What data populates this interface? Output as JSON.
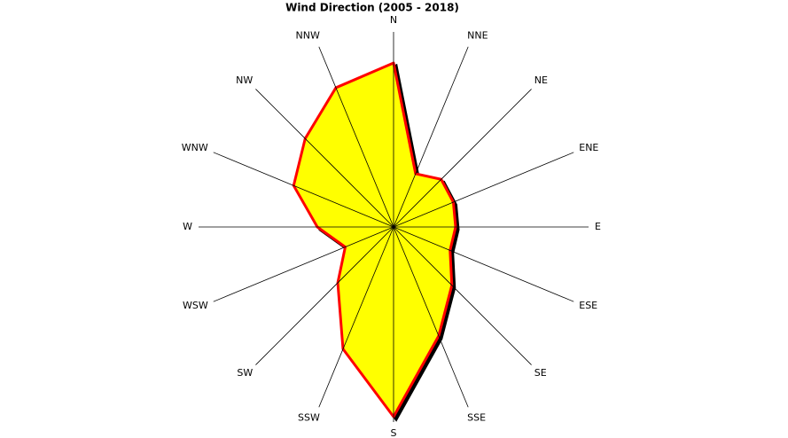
{
  "chart_data": {
    "type": "radar",
    "title": "Wind Direction (2005 - 2018)",
    "categories": [
      "N",
      "NNE",
      "NE",
      "ENE",
      "E",
      "ESE",
      "SE",
      "SSE",
      "S",
      "SSW",
      "SW",
      "WSW",
      "W",
      "WNW",
      "NW",
      "NNW"
    ],
    "values": [
      185,
      65,
      76,
      73,
      70,
      69,
      93,
      133,
      214,
      149,
      89,
      59,
      86,
      122,
      141,
      170
    ],
    "rlim": [
      0,
      220
    ],
    "color": "#ffff00",
    "line_color": "#ff0000"
  }
}
